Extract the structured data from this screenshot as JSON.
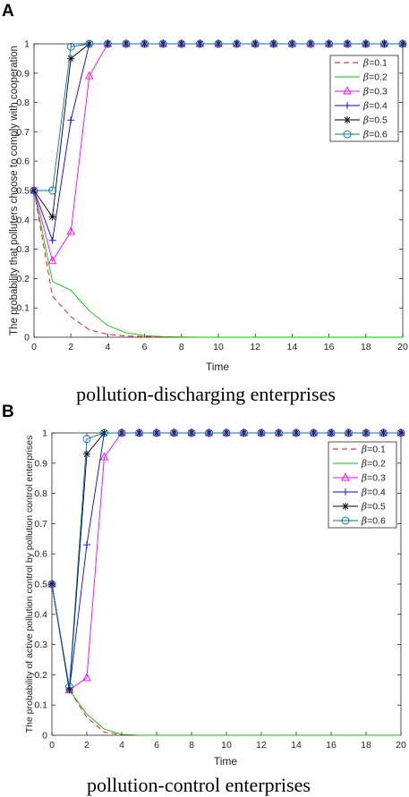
{
  "chart_data": [
    {
      "panel": "A",
      "type": "line",
      "xlabel": "Time",
      "ylabel": "The probability that polluters choose to comply with cooperation",
      "caption": "pollution-discharging enterprises",
      "xlim": [
        0,
        20
      ],
      "ylim": [
        0,
        1
      ],
      "x_ticks": [
        0,
        2,
        4,
        6,
        8,
        10,
        12,
        14,
        16,
        18,
        20
      ],
      "y_ticks": [
        0,
        0.1,
        0.2,
        0.3,
        0.4,
        0.5,
        0.6,
        0.7,
        0.8,
        0.9,
        1
      ],
      "legend_placement": "top-right",
      "x": [
        0,
        1,
        2,
        3,
        4,
        5,
        6,
        7,
        8,
        9,
        10,
        11,
        12,
        13,
        14,
        15,
        16,
        17,
        18,
        19,
        20
      ],
      "series": [
        {
          "name": "β=0.1",
          "color": "#ff0000",
          "dash": "dashed",
          "marker": "none",
          "values": [
            0.5,
            0.14,
            0.07,
            0.025,
            0.01,
            0.004,
            0.002,
            0.001,
            0,
            0,
            0,
            0,
            0,
            0,
            0,
            0,
            0,
            0,
            0,
            0,
            0
          ]
        },
        {
          "name": "β=0.2",
          "color": "#00cc00",
          "dash": "solid",
          "marker": "none",
          "values": [
            0.5,
            0.19,
            0.16,
            0.09,
            0.04,
            0.015,
            0.005,
            0.002,
            0.001,
            0,
            0,
            0,
            0,
            0,
            0,
            0,
            0,
            0,
            0,
            0,
            0
          ]
        },
        {
          "name": "β=0.3",
          "color": "#ff00ff",
          "dash": "solid",
          "marker": "triangle",
          "values": [
            0.5,
            0.26,
            0.36,
            0.89,
            1,
            1,
            1,
            1,
            1,
            1,
            1,
            1,
            1,
            1,
            1,
            1,
            1,
            1,
            1,
            1,
            1
          ]
        },
        {
          "name": "β=0.4",
          "color": "#0000ff",
          "dash": "solid",
          "marker": "plus",
          "values": [
            0.5,
            0.33,
            0.74,
            1,
            1,
            1,
            1,
            1,
            1,
            1,
            1,
            1,
            1,
            1,
            1,
            1,
            1,
            1,
            1,
            1,
            1
          ]
        },
        {
          "name": "β=0.5",
          "color": "#000000",
          "dash": "solid",
          "marker": "star",
          "values": [
            0.5,
            0.41,
            0.95,
            1,
            1,
            1,
            1,
            1,
            1,
            1,
            1,
            1,
            1,
            1,
            1,
            1,
            1,
            1,
            1,
            1,
            1
          ]
        },
        {
          "name": "β=0.6",
          "color": "#0072bd",
          "dash": "solid",
          "marker": "circle",
          "values": [
            0.5,
            0.5,
            0.99,
            1,
            1,
            1,
            1,
            1,
            1,
            1,
            1,
            1,
            1,
            1,
            1,
            1,
            1,
            1,
            1,
            1,
            1
          ]
        }
      ]
    },
    {
      "panel": "B",
      "type": "line",
      "xlabel": "Time",
      "ylabel": "The probability of active pollution control by pollution control enterprises",
      "caption": "pollution-control enterprises",
      "xlim": [
        0,
        20
      ],
      "ylim": [
        0,
        1
      ],
      "x_ticks": [
        0,
        2,
        4,
        6,
        8,
        10,
        12,
        14,
        16,
        18,
        20
      ],
      "y_ticks": [
        0,
        0.1,
        0.2,
        0.3,
        0.4,
        0.5,
        0.6,
        0.7,
        0.8,
        0.9,
        1
      ],
      "legend_placement": "top-right",
      "x": [
        0,
        1,
        2,
        3,
        4,
        5,
        6,
        7,
        8,
        9,
        10,
        11,
        12,
        13,
        14,
        15,
        16,
        17,
        18,
        19,
        20
      ],
      "series": [
        {
          "name": "β=0.1",
          "color": "#ff0000",
          "dash": "dashed",
          "marker": "none",
          "values": [
            0.5,
            0.15,
            0.06,
            0.01,
            0.002,
            0,
            0,
            0,
            0,
            0,
            0,
            0,
            0,
            0,
            0,
            0,
            0,
            0,
            0,
            0,
            0
          ]
        },
        {
          "name": "β=0.2",
          "color": "#00cc00",
          "dash": "solid",
          "marker": "none",
          "values": [
            0.5,
            0.15,
            0.07,
            0.02,
            0.003,
            0,
            0,
            0,
            0,
            0,
            0,
            0,
            0,
            0,
            0,
            0,
            0,
            0,
            0,
            0,
            0
          ]
        },
        {
          "name": "β=0.3",
          "color": "#ff00ff",
          "dash": "solid",
          "marker": "triangle",
          "values": [
            0.5,
            0.15,
            0.19,
            0.92,
            1,
            1,
            1,
            1,
            1,
            1,
            1,
            1,
            1,
            1,
            1,
            1,
            1,
            1,
            1,
            1,
            1
          ]
        },
        {
          "name": "β=0.4",
          "color": "#0000ff",
          "dash": "solid",
          "marker": "plus",
          "values": [
            0.5,
            0.15,
            0.63,
            1,
            1,
            1,
            1,
            1,
            1,
            1,
            1,
            1,
            1,
            1,
            1,
            1,
            1,
            1,
            1,
            1,
            1
          ]
        },
        {
          "name": "β=0.5",
          "color": "#000000",
          "dash": "solid",
          "marker": "star",
          "values": [
            0.5,
            0.15,
            0.93,
            1,
            1,
            1,
            1,
            1,
            1,
            1,
            1,
            1,
            1,
            1,
            1,
            1,
            1,
            1,
            1,
            1,
            1
          ]
        },
        {
          "name": "β=0.6",
          "color": "#0072bd",
          "dash": "solid",
          "marker": "circle",
          "values": [
            0.5,
            0.16,
            0.98,
            1,
            1,
            1,
            1,
            1,
            1,
            1,
            1,
            1,
            1,
            1,
            1,
            1,
            1,
            1,
            1,
            1,
            1
          ]
        }
      ]
    }
  ]
}
